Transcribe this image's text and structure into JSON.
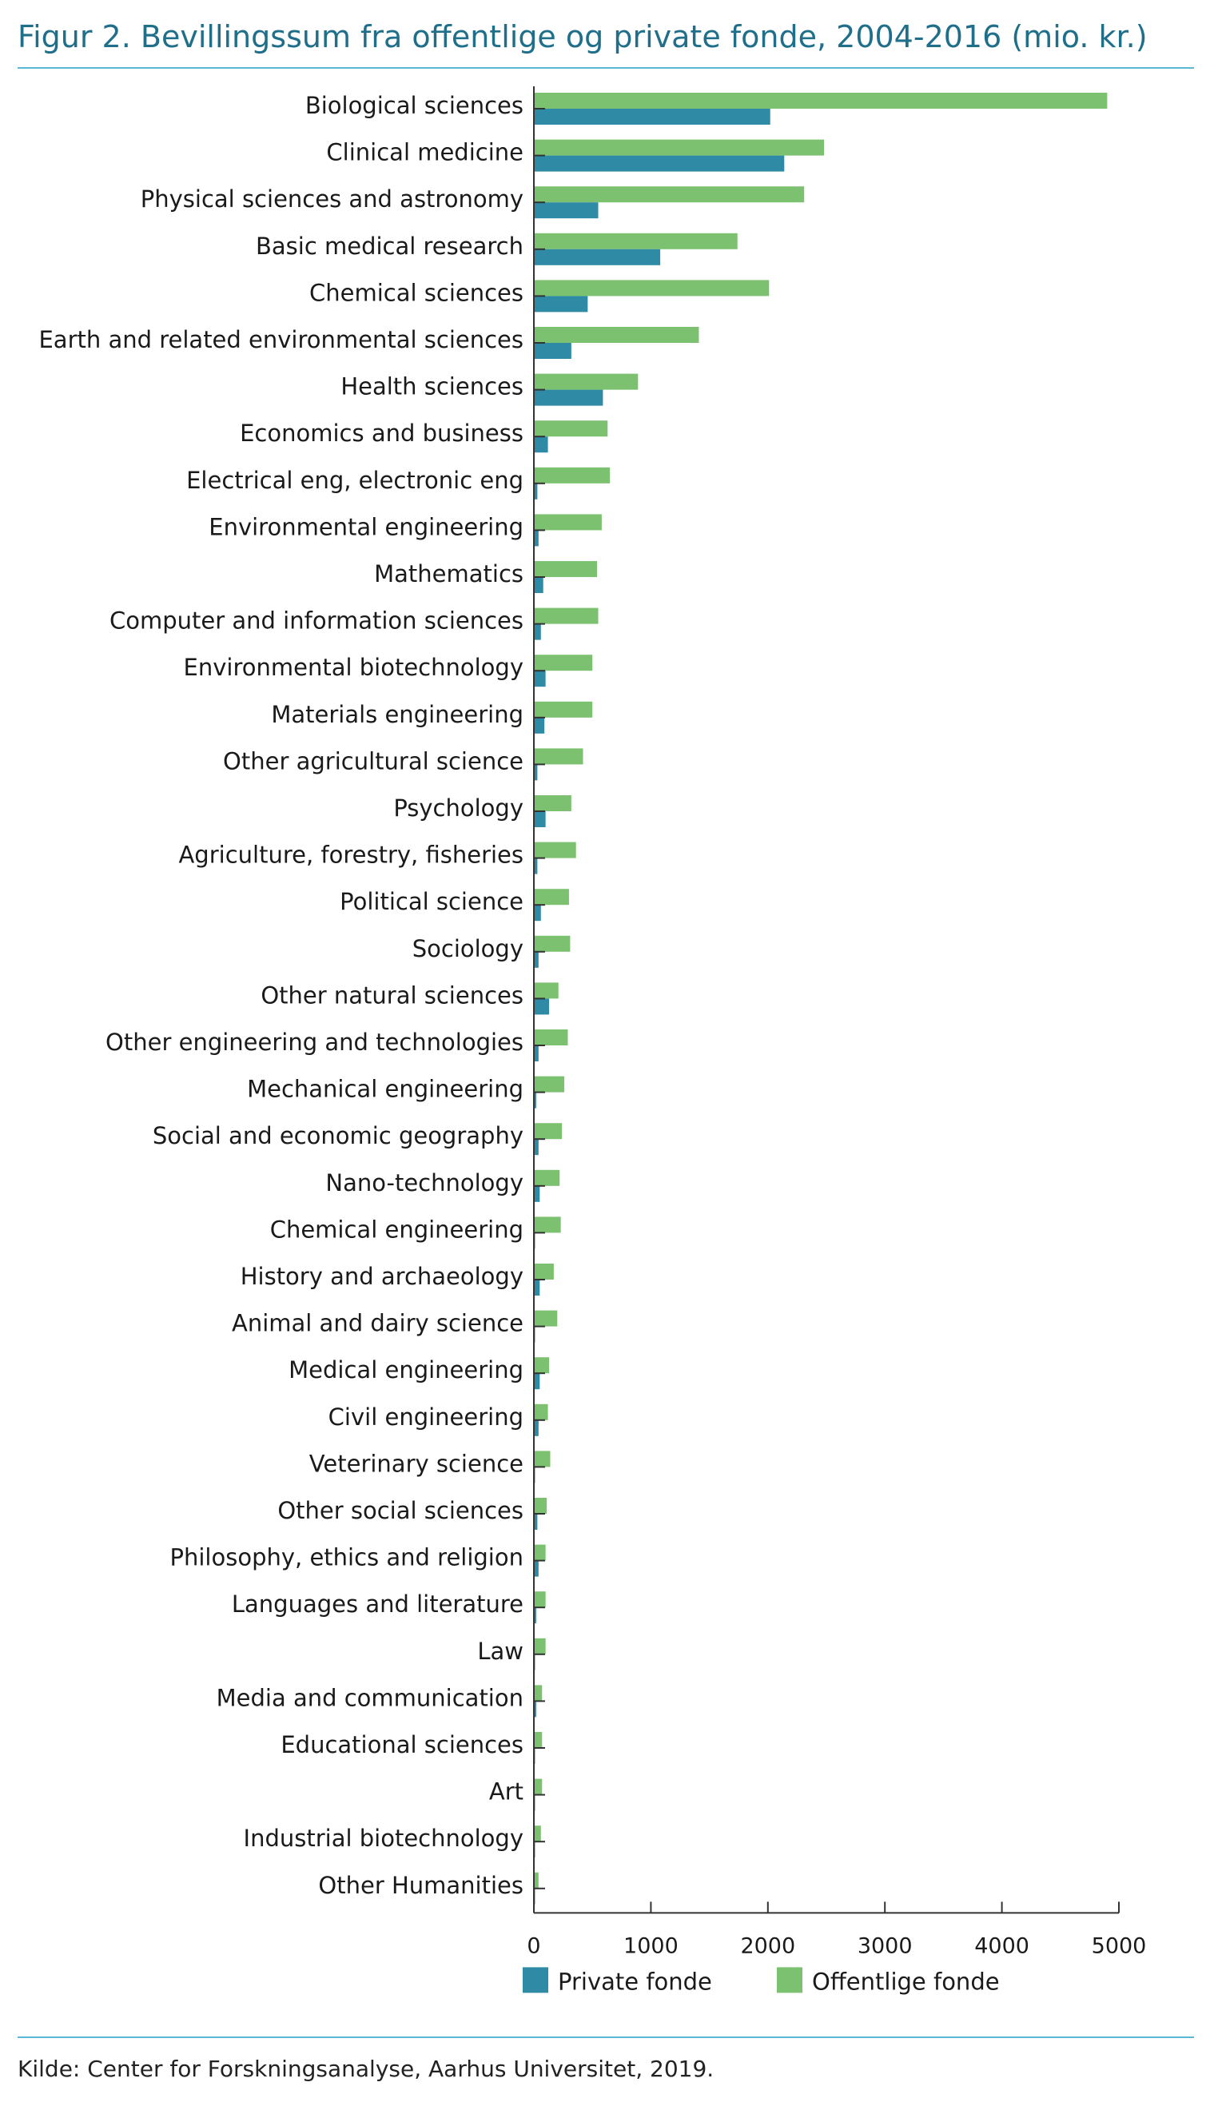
{
  "title": "Figur 2. Bevillingssum fra offentlige og private fonde, 2004-2016 (mio. kr.)",
  "source": "Kilde: Center for Forskningsanalyse, Aarhus Universitet, 2019.",
  "colors": {
    "title": "#1f6f8b",
    "rule": "#5cb6d8",
    "private": "#2f8aa5",
    "public": "#7cc16f",
    "axis": "#333333"
  },
  "chart_data": {
    "type": "bar",
    "orientation": "horizontal",
    "title": "Figur 2. Bevillingssum fra offentlige og private fonde, 2004-2016 (mio. kr.)",
    "xlabel": "",
    "ylabel": "",
    "xlim": [
      0,
      5000
    ],
    "xticks": [
      "0",
      "1000",
      "2000",
      "3000",
      "4000",
      "5000"
    ],
    "xtick_values": [
      0,
      1000,
      2000,
      3000,
      4000,
      5000
    ],
    "grid": false,
    "legend_position": "bottom",
    "categories": [
      "Biological sciences",
      "Clinical medicine",
      "Physical sciences and astronomy",
      "Basic medical research",
      "Chemical sciences",
      "Earth and related environmental sciences",
      "Health sciences",
      "Economics and business",
      "Electrical eng, electronic eng",
      "Environmental engineering",
      "Mathematics",
      "Computer and information sciences",
      "Environmental biotechnology",
      "Materials engineering",
      "Other agricultural science",
      "Psychology",
      "Agriculture, forestry, fisheries",
      "Political science",
      "Sociology",
      "Other natural sciences",
      "Other engineering and technologies",
      "Mechanical engineering",
      "Social and economic geography",
      "Nano-technology",
      "Chemical engineering",
      "History and archaeology",
      "Animal and dairy science",
      "Medical engineering",
      "Civil engineering",
      "Veterinary science",
      "Other social sciences",
      "Philosophy, ethics and religion",
      "Languages and literature",
      "Law",
      "Media and communication",
      "Educational sciences",
      "Art",
      "Industrial biotechnology",
      "Other Humanities"
    ],
    "series": [
      {
        "name": "Offentlige fonde",
        "color": "#7cc16f",
        "values": [
          4900,
          2480,
          2310,
          1740,
          2010,
          1410,
          890,
          630,
          650,
          580,
          540,
          550,
          500,
          500,
          420,
          320,
          360,
          300,
          310,
          210,
          290,
          260,
          240,
          220,
          230,
          170,
          200,
          130,
          120,
          140,
          110,
          100,
          100,
          100,
          70,
          70,
          70,
          60,
          40
        ]
      },
      {
        "name": "Private fonde",
        "color": "#2f8aa5",
        "values": [
          2020,
          2140,
          550,
          1080,
          460,
          320,
          590,
          120,
          30,
          40,
          80,
          60,
          100,
          90,
          30,
          100,
          30,
          60,
          40,
          130,
          40,
          20,
          40,
          50,
          10,
          50,
          10,
          50,
          40,
          10,
          30,
          40,
          20,
          10,
          20,
          10,
          10,
          10,
          10
        ]
      }
    ]
  },
  "legend": [
    {
      "name": "Private fonde",
      "color": "#2f8aa5"
    },
    {
      "name": "Offentlige fonde",
      "color": "#7cc16f"
    }
  ]
}
